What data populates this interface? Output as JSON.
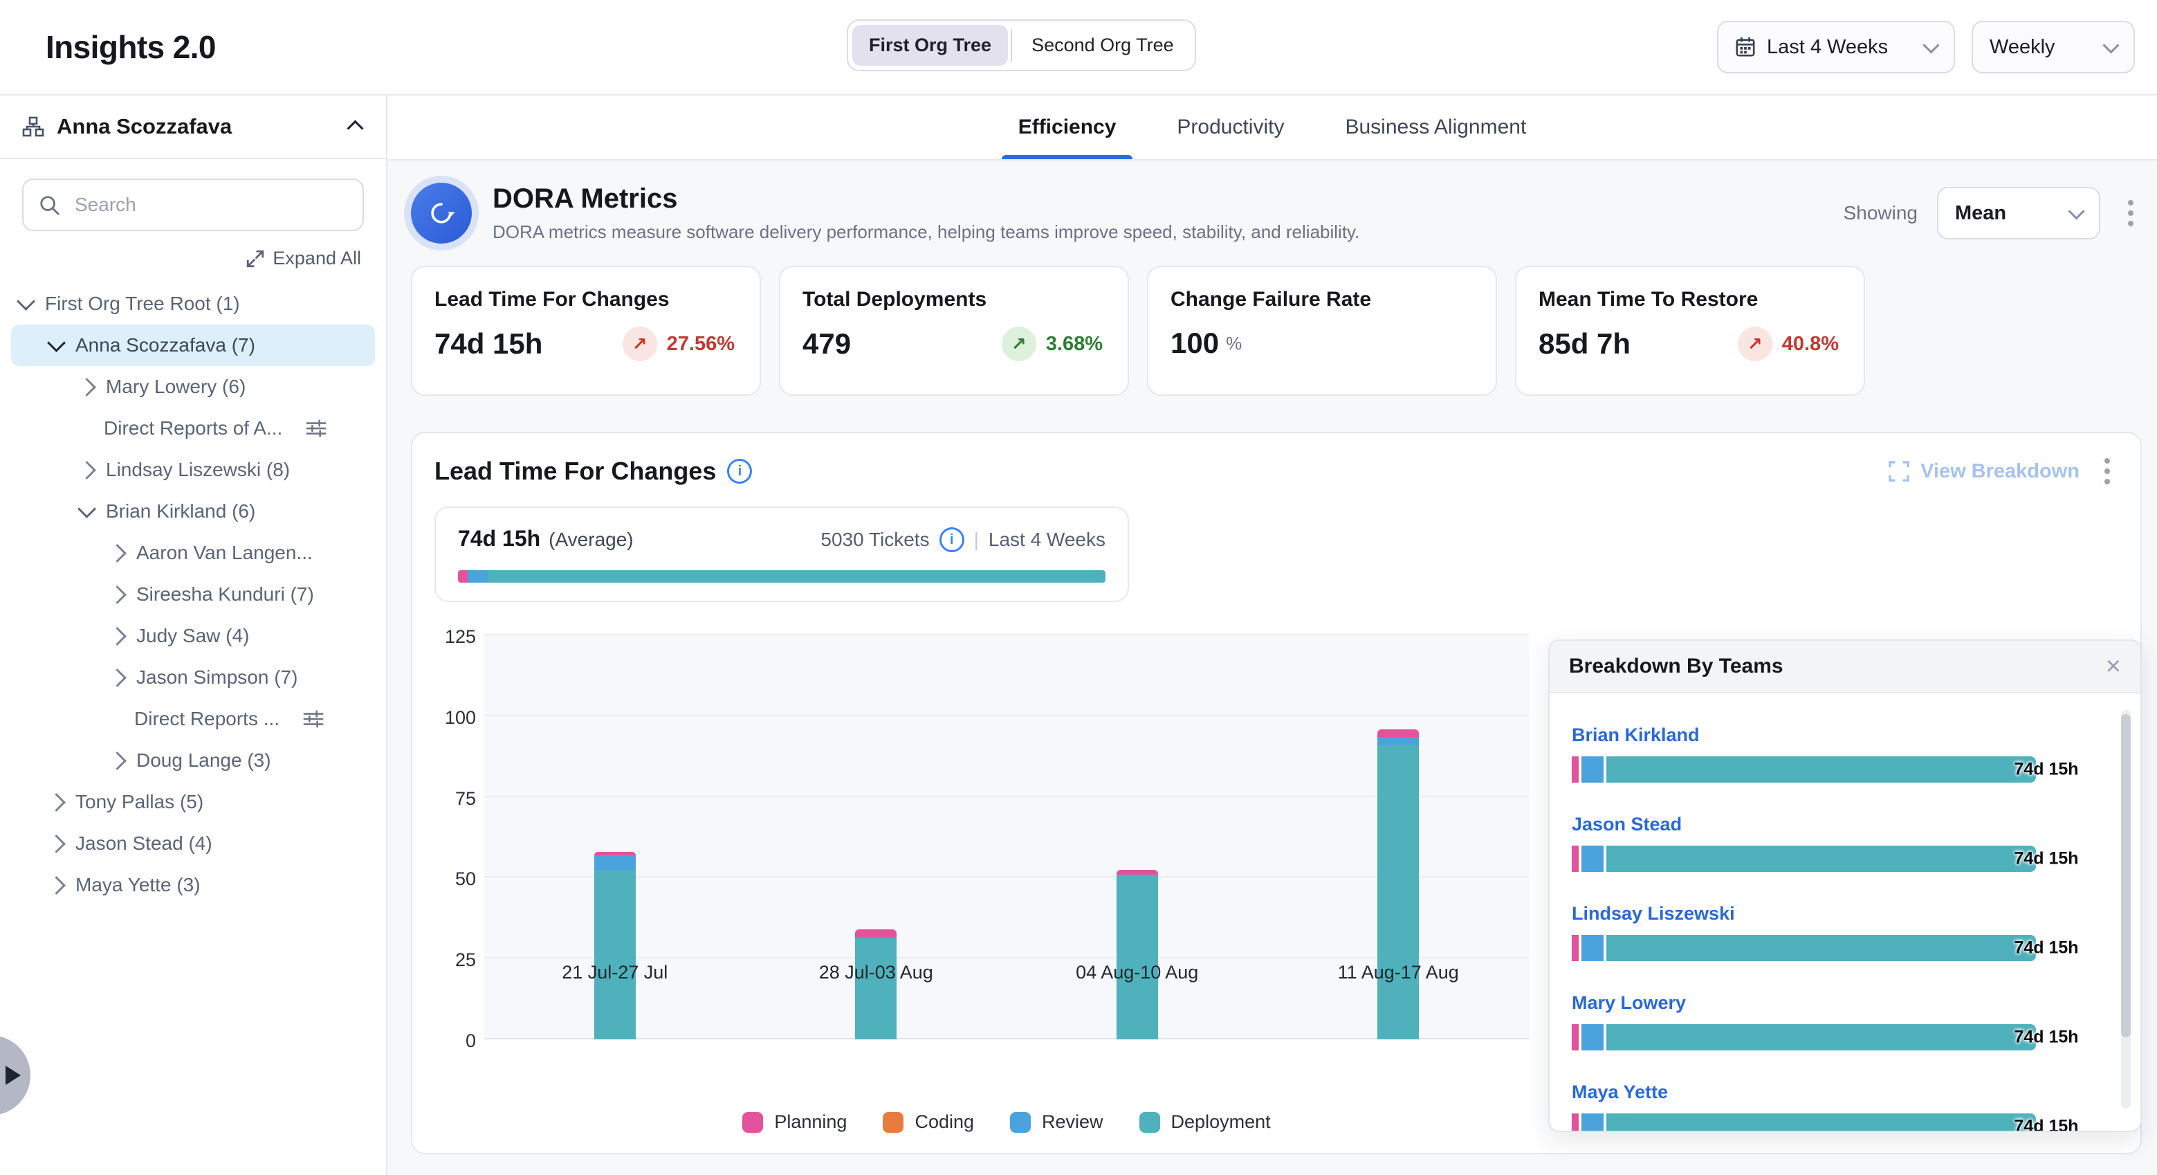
{
  "header": {
    "app_title": "Insights 2.0",
    "org_toggle": {
      "options": [
        "First Org Tree",
        "Second Org Tree"
      ],
      "selected": "First Org Tree"
    },
    "date_range": "Last 4 Weeks",
    "granularity": "Weekly"
  },
  "sidebar": {
    "user_name": "Anna Scozzafava",
    "search_placeholder": "Search",
    "expand_all_label": "Expand All",
    "tree": [
      {
        "label": "First Org Tree Root (1)",
        "level": 0,
        "state": "expanded",
        "selected": false,
        "filter_icon": false
      },
      {
        "label": "Anna Scozzafava (7)",
        "level": 1,
        "state": "expanded",
        "selected": true,
        "filter_icon": false
      },
      {
        "label": "Mary Lowery (6)",
        "level": 2,
        "state": "collapsed",
        "selected": false,
        "filter_icon": false
      },
      {
        "label": "Direct Reports of A...",
        "level": 2,
        "state": "none",
        "selected": false,
        "filter_icon": true
      },
      {
        "label": "Lindsay Liszewski (8)",
        "level": 2,
        "state": "collapsed",
        "selected": false,
        "filter_icon": false
      },
      {
        "label": "Brian Kirkland (6)",
        "level": 2,
        "state": "expanded",
        "selected": false,
        "filter_icon": false
      },
      {
        "label": "Aaron Van Langen...",
        "level": 3,
        "state": "collapsed",
        "selected": false,
        "filter_icon": false
      },
      {
        "label": "Sireesha Kunduri (7)",
        "level": 3,
        "state": "collapsed",
        "selected": false,
        "filter_icon": false
      },
      {
        "label": "Judy Saw (4)",
        "level": 3,
        "state": "collapsed",
        "selected": false,
        "filter_icon": false
      },
      {
        "label": "Jason Simpson (7)",
        "level": 3,
        "state": "collapsed",
        "selected": false,
        "filter_icon": false
      },
      {
        "label": "Direct Reports ...",
        "level": 3,
        "state": "none",
        "selected": false,
        "filter_icon": true
      },
      {
        "label": "Doug Lange (3)",
        "level": 3,
        "state": "collapsed",
        "selected": false,
        "filter_icon": false
      },
      {
        "label": "Tony Pallas (5)",
        "level": 1,
        "state": "collapsed",
        "selected": false,
        "filter_icon": false
      },
      {
        "label": "Jason Stead (4)",
        "level": 1,
        "state": "collapsed",
        "selected": false,
        "filter_icon": false
      },
      {
        "label": "Maya Yette (3)",
        "level": 1,
        "state": "collapsed",
        "selected": false,
        "filter_icon": false
      }
    ]
  },
  "tabs": [
    {
      "label": "Efficiency",
      "active": true
    },
    {
      "label": "Productivity",
      "active": false
    },
    {
      "label": "Business Alignment",
      "active": false
    }
  ],
  "dora": {
    "title": "DORA Metrics",
    "subtitle": "DORA metrics measure software delivery performance, helping teams improve speed, stability, and reliability.",
    "showing_label": "Showing",
    "showing_value": "Mean",
    "cards": [
      {
        "title": "Lead Time For Changes",
        "value": "74d 15h",
        "unit": "",
        "delta": "27.56%",
        "trend": "up",
        "sentiment": "bad"
      },
      {
        "title": "Total Deployments",
        "value": "479",
        "unit": "",
        "delta": "3.68%",
        "trend": "up",
        "sentiment": "good"
      },
      {
        "title": "Change Failure Rate",
        "value": "100",
        "unit": "%",
        "delta": "",
        "trend": "",
        "sentiment": ""
      },
      {
        "title": "Mean Time To Restore",
        "value": "85d 7h",
        "unit": "",
        "delta": "40.8%",
        "trend": "up",
        "sentiment": "bad"
      }
    ]
  },
  "lead_time_panel": {
    "title": "Lead Time For Changes",
    "view_breakdown_label": "View Breakdown",
    "average_value": "74d 15h",
    "average_label": "(Average)",
    "tickets_label": "5030 Tickets",
    "range_label": "Last 4 Weeks",
    "average_bar_pcts": {
      "planning": 1.5,
      "review": 3.2,
      "deployment": 95.3
    }
  },
  "chart_data": {
    "type": "bar",
    "stacked": true,
    "title": "Lead Time For Changes",
    "categories": [
      "21 Jul-27 Jul",
      "28 Jul-03 Aug",
      "04 Aug-10 Aug",
      "11 Aug-17 Aug"
    ],
    "series": [
      {
        "name": "Planning",
        "color": "#E3529B",
        "values": [
          1,
          2.5,
          1.5,
          2.5
        ]
      },
      {
        "name": "Coding",
        "color": "#E87B40",
        "values": [
          0,
          0,
          0,
          0
        ]
      },
      {
        "name": "Review",
        "color": "#4AA3DD",
        "values": [
          4.5,
          0,
          0,
          2.5
        ]
      },
      {
        "name": "Deployment",
        "color": "#4FB1BB",
        "values": [
          52.5,
          31.5,
          51,
          91
        ]
      }
    ],
    "totals": [
      58,
      34,
      52.5,
      96
    ],
    "ylim": [
      0,
      125
    ],
    "yticks": [
      0,
      25,
      50,
      75,
      100,
      125
    ],
    "grid": true,
    "legend_position": "bottom"
  },
  "breakdown": {
    "title": "Breakdown By Teams",
    "rows": [
      {
        "name": "Brian Kirkland",
        "value": "74d 15h"
      },
      {
        "name": "Jason Stead",
        "value": "74d 15h"
      },
      {
        "name": "Lindsay Liszewski",
        "value": "74d 15h"
      },
      {
        "name": "Mary Lowery",
        "value": "74d 15h"
      },
      {
        "name": "Maya Yette",
        "value": "74d 15h"
      }
    ],
    "bar_pcts": {
      "planning": 1.5,
      "review": 4.5,
      "deployment": 94
    }
  },
  "colors": {
    "planning": "#E3529B",
    "coding": "#E87B40",
    "review": "#4AA3DD",
    "deployment": "#4FB1BB",
    "negative": "#C13A33",
    "positive": "#2F7D36",
    "accent_blue": "#2F6BE0",
    "link_blue": "#2968D9",
    "selected_row_bg": "#DDEFFB"
  }
}
